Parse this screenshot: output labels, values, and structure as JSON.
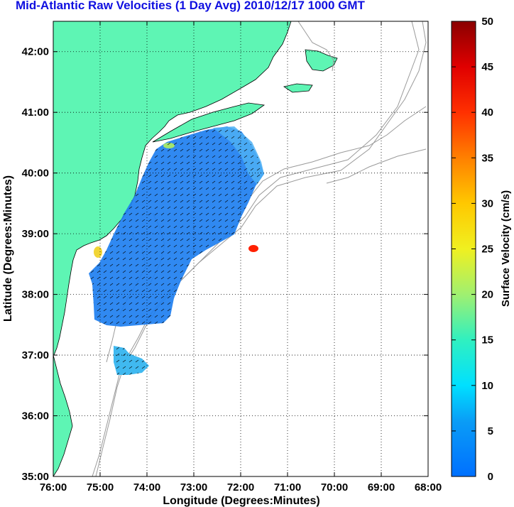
{
  "title": "Mid-Atlantic Raw Velocities (1 Day Avg) 2010/12/17 1000 GMT",
  "map": {
    "xlabel": "Longitude (Degrees:Minutes)",
    "ylabel": "Latitude (Degrees:Minutes)",
    "x_ticks": [
      "76:00",
      "75:00",
      "74:00",
      "73:00",
      "72:00",
      "71:00",
      "70:00",
      "69:00",
      "68:00"
    ],
    "y_ticks": [
      "35:00",
      "36:00",
      "37:00",
      "38:00",
      "39:00",
      "40:00",
      "41:00",
      "42:00"
    ],
    "lon_range": [
      -76,
      -68
    ],
    "lat_range": [
      35,
      42.5
    ],
    "grid": "dotted",
    "land_color": "#5ef5b4",
    "contour_color": "#9a9a9a"
  },
  "colorbar": {
    "label": "Surface Velocity (cm/s)",
    "ticks": [
      "0",
      "5",
      "10",
      "15",
      "20",
      "25",
      "30",
      "35",
      "40",
      "45",
      "50"
    ],
    "range": [
      0,
      50
    ]
  }
}
